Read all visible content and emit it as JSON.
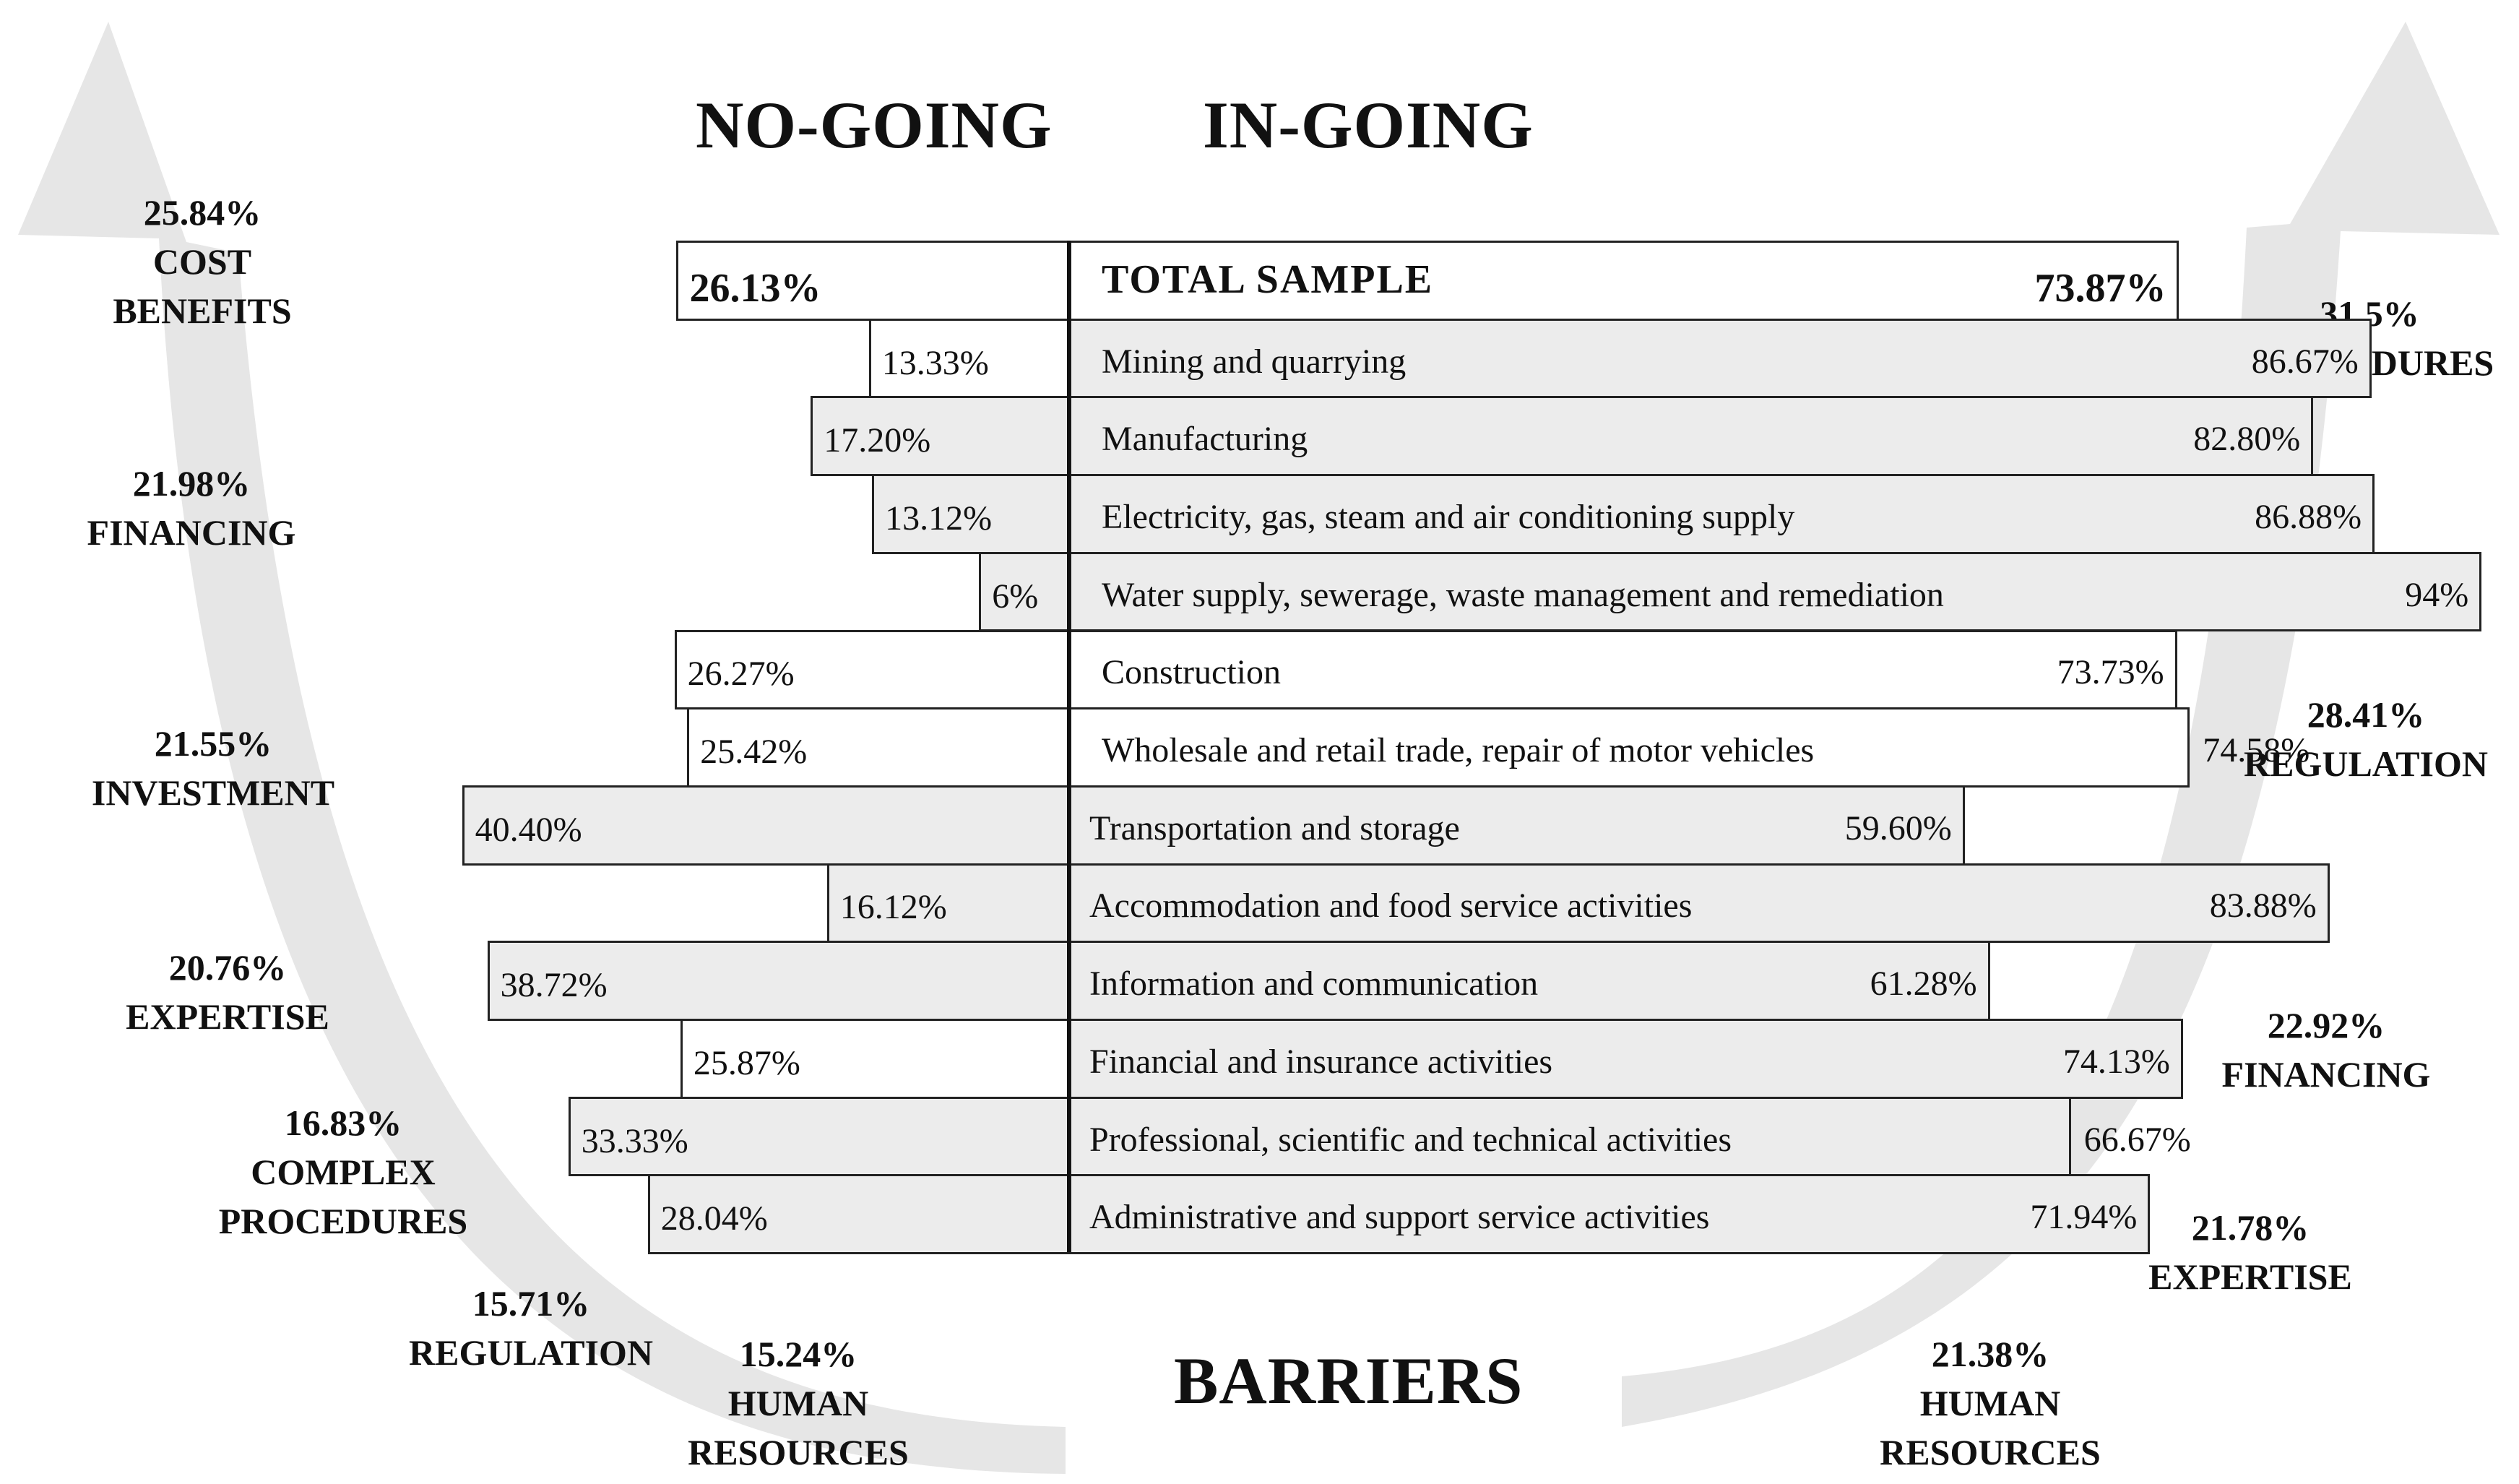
{
  "headers": {
    "left": "NO-GOING",
    "right": "IN-GOING",
    "bottom": "BARRIERS"
  },
  "colors": {
    "arrow": "#e6e6e6",
    "bar_fill": "#ececec",
    "border": "#222222",
    "text": "#111111"
  },
  "left_barriers": [
    {
      "pct": "25.84%",
      "label": "COST\nBENEFITS"
    },
    {
      "pct": "21.98%",
      "label": "FINANCING"
    },
    {
      "pct": "21.55%",
      "label": "INVESTMENT"
    },
    {
      "pct": "20.76%",
      "label": "EXPERTISE"
    },
    {
      "pct": "16.83%",
      "label": "COMPLEX\nPROCEDURES"
    },
    {
      "pct": "15.71%",
      "label": "REGULATION"
    },
    {
      "pct": "15.24%",
      "label": "HUMAN\nRESOURCES"
    }
  ],
  "right_barriers": [
    {
      "pct": "31.5%",
      "label": "PROCEDURES"
    },
    {
      "pct": "28.41%",
      "label": "REGULATION"
    },
    {
      "pct": "22.92%",
      "label": "FINANCING"
    },
    {
      "pct": "21.78%",
      "label": "EXPERTISE"
    },
    {
      "pct": "21.38%",
      "label": "HUMAN\nRESOURCES"
    }
  ],
  "chart_data": {
    "type": "bar",
    "orientation": "horizontal-diverging",
    "categories": [
      "TOTAL SAMPLE",
      "Mining  and quarrying",
      "Manufacturing",
      "Electricity,  gas, steam and air  conditioning  supply",
      "Water supply, sewerage,  waste management  and remediation",
      "Construction",
      "Wholesale and retail  trade,  repair  of motor vehicles",
      "Transportation and storage",
      "Accommodation and food service activities",
      "Information  and communication",
      "Financial  and insurance activities",
      "Professional,  scientific  and technical  activities",
      "Administrative   and support service activities"
    ],
    "series": [
      {
        "name": "NO-GOING",
        "values": [
          26.13,
          13.33,
          17.2,
          13.12,
          6,
          26.27,
          25.42,
          40.4,
          16.12,
          38.72,
          25.87,
          33.33,
          28.04
        ],
        "labels": [
          "26.13%",
          "13.33%",
          "17.20%",
          "13.12%",
          "6%",
          "26.27%",
          "25.42%",
          "40.40%",
          "16.12%",
          "38.72%",
          "25.87%",
          "33.33%",
          "28.04%"
        ]
      },
      {
        "name": "IN-GOING",
        "values": [
          73.87,
          86.67,
          82.8,
          86.88,
          94,
          73.73,
          74.58,
          59.6,
          83.88,
          61.28,
          74.13,
          66.67,
          71.94
        ],
        "labels": [
          "73.87%",
          "86.67%",
          "82.80%",
          "86.88%",
          "94%",
          "73.73%",
          "74.58%",
          "59.60%",
          "83.88%",
          "61.28%",
          "74.13%",
          "66.67%",
          "71.94%"
        ]
      }
    ]
  }
}
